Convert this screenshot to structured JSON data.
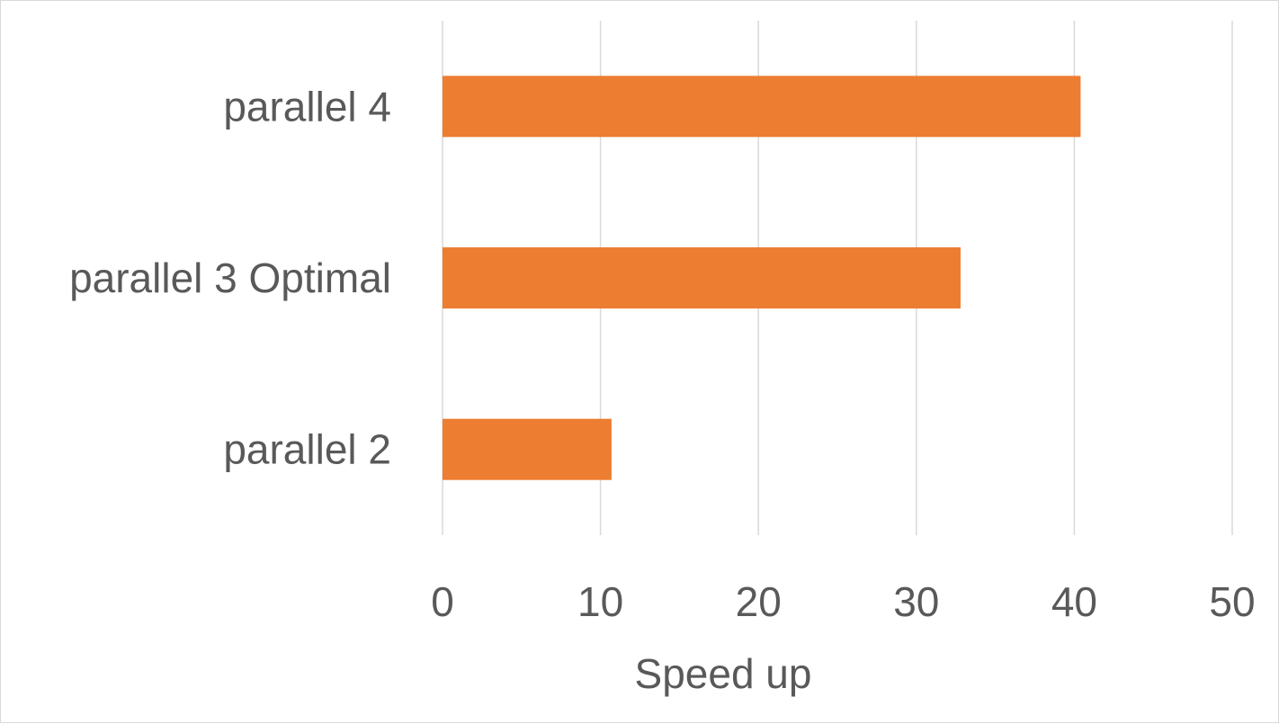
{
  "chart_data": {
    "type": "bar",
    "orientation": "horizontal",
    "categories": [
      "parallel 2",
      "parallel 3 Optimal",
      "parallel 4"
    ],
    "values": [
      10.7,
      32.8,
      40.4
    ],
    "title": "",
    "xlabel": "Speed up",
    "ylabel": "",
    "xlim": [
      0,
      50
    ],
    "x_ticks": [
      "0",
      "10",
      "20",
      "30",
      "40",
      "50"
    ],
    "grid": true,
    "legend": "none",
    "bar_color": "#ed7d31"
  }
}
